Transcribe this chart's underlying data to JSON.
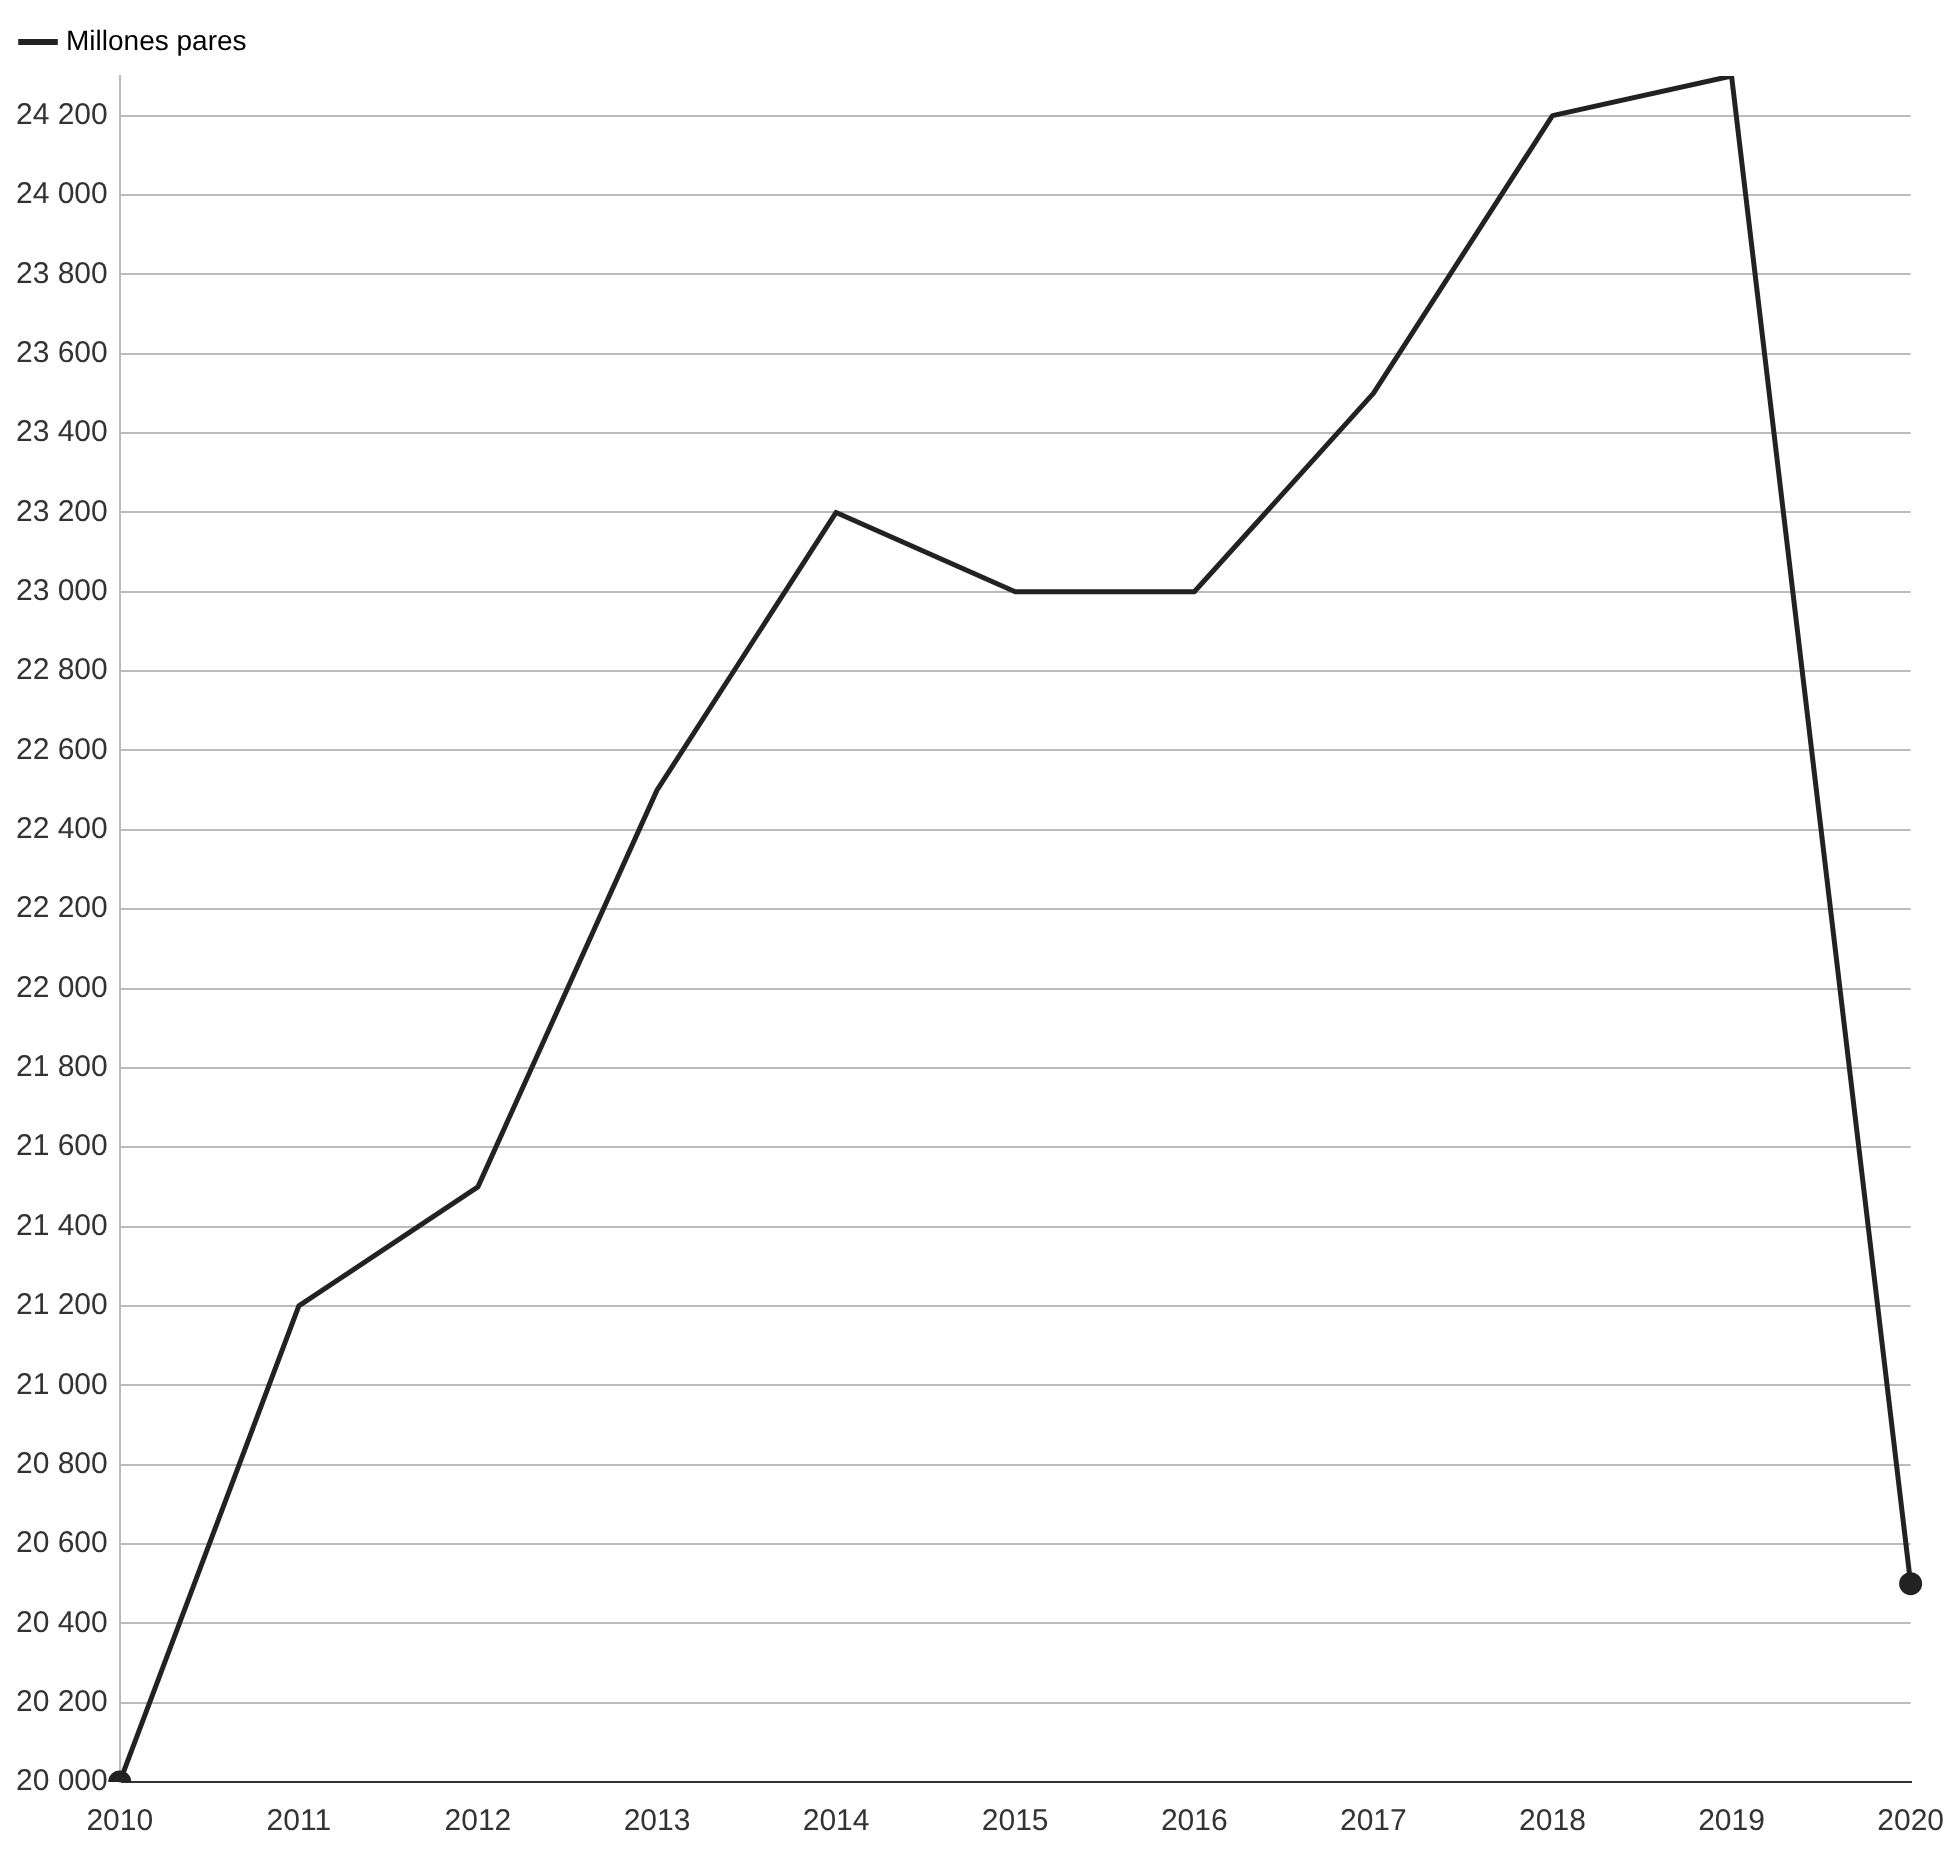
{
  "chart_data": {
    "type": "line",
    "categories": [
      "2010",
      "2011",
      "2012",
      "2013",
      "2014",
      "2015",
      "2016",
      "2017",
      "2018",
      "2019",
      "2020"
    ],
    "series": [
      {
        "name": "Millones pares",
        "color": "#222222",
        "values": [
          20000,
          21200,
          21500,
          22500,
          23200,
          23000,
          23000,
          23500,
          24200,
          24300,
          20500
        ]
      }
    ],
    "ylim": [
      20000,
      24300
    ],
    "yticks": [
      {
        "value": 20000,
        "label": "20 000"
      },
      {
        "value": 20200,
        "label": "20 200"
      },
      {
        "value": 20400,
        "label": "20 400"
      },
      {
        "value": 20600,
        "label": "20 600"
      },
      {
        "value": 20800,
        "label": "20 800"
      },
      {
        "value": 21000,
        "label": "21 000"
      },
      {
        "value": 21200,
        "label": "21 200"
      },
      {
        "value": 21400,
        "label": "21 400"
      },
      {
        "value": 21600,
        "label": "21 600"
      },
      {
        "value": 21800,
        "label": "21 800"
      },
      {
        "value": 22000,
        "label": "22 000"
      },
      {
        "value": 22200,
        "label": "22 200"
      },
      {
        "value": 22400,
        "label": "22 400"
      },
      {
        "value": 22600,
        "label": "22 600"
      },
      {
        "value": 22800,
        "label": "22 800"
      },
      {
        "value": 23000,
        "label": "23 000"
      },
      {
        "value": 23200,
        "label": "23 200"
      },
      {
        "value": 23400,
        "label": "23 400"
      },
      {
        "value": 23600,
        "label": "23 600"
      },
      {
        "value": 23800,
        "label": "23 800"
      },
      {
        "value": 24000,
        "label": "24 000"
      },
      {
        "value": 24200,
        "label": "24 200"
      }
    ],
    "grid": "y",
    "legend": "top left",
    "line_style": "solid"
  }
}
